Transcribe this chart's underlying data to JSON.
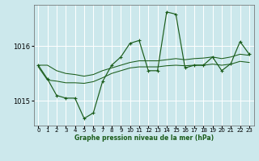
{
  "title": "Graphe pression niveau de la mer (hPa)",
  "bg_color": "#cce8ec",
  "grid_color": "#ffffff",
  "line_color": "#1a5c1a",
  "xlim": [
    -0.5,
    23.5
  ],
  "ylim": [
    1014.55,
    1016.75
  ],
  "yticks": [
    1015,
    1016
  ],
  "xticks": [
    0,
    1,
    2,
    3,
    4,
    5,
    6,
    7,
    8,
    9,
    10,
    11,
    12,
    13,
    14,
    15,
    16,
    17,
    18,
    19,
    20,
    21,
    22,
    23
  ],
  "line1_y": [
    1015.65,
    1015.65,
    1015.55,
    1015.5,
    1015.48,
    1015.45,
    1015.48,
    1015.55,
    1015.6,
    1015.65,
    1015.7,
    1015.73,
    1015.73,
    1015.73,
    1015.75,
    1015.77,
    1015.75,
    1015.77,
    1015.78,
    1015.8,
    1015.77,
    1015.8,
    1015.85,
    1015.83
  ],
  "line2_y": [
    1015.62,
    1015.38,
    1015.36,
    1015.33,
    1015.33,
    1015.32,
    1015.35,
    1015.42,
    1015.5,
    1015.55,
    1015.6,
    1015.62,
    1015.62,
    1015.62,
    1015.64,
    1015.65,
    1015.64,
    1015.65,
    1015.65,
    1015.67,
    1015.65,
    1015.67,
    1015.72,
    1015.7
  ],
  "main_x": [
    0,
    1,
    2,
    3,
    4,
    5,
    6,
    7,
    8,
    9,
    10,
    11,
    12,
    13,
    14,
    15,
    16,
    17,
    18,
    19,
    20,
    21,
    22,
    23
  ],
  "main_y": [
    1015.65,
    1015.4,
    1015.1,
    1015.05,
    1015.05,
    1014.68,
    1014.78,
    1015.35,
    1015.65,
    1015.8,
    1016.05,
    1016.1,
    1015.55,
    1015.55,
    1016.62,
    1016.58,
    1015.6,
    1015.65,
    1015.65,
    1015.8,
    1015.55,
    1015.68,
    1016.08,
    1015.85
  ]
}
